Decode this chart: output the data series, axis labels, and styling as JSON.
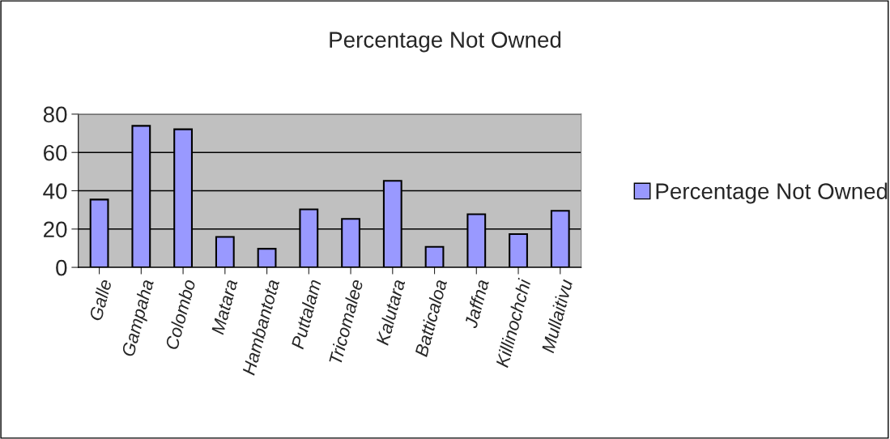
{
  "chart_data": {
    "type": "bar",
    "title": "Percentage Not Owned",
    "categories": [
      "Galle",
      "Gampaha",
      "Colombo",
      "Matara",
      "Hambantota",
      "Puttalam",
      "Tricomalee",
      "Kalutara",
      "Batticaloa",
      "Jaffna",
      "Killinochchi",
      "Mullaitivu"
    ],
    "series": [
      {
        "name": "Percentage Not Owned",
        "color": "#9999ff",
        "values": [
          35.4,
          73.9,
          72.1,
          15.9,
          9.7,
          30.3,
          25.3,
          45.2,
          10.7,
          27.7,
          17.4,
          29.5
        ]
      }
    ],
    "ylim": [
      0,
      80
    ],
    "yticks": [
      0,
      20,
      40,
      60,
      80
    ],
    "grid": "y",
    "legend": "right"
  }
}
